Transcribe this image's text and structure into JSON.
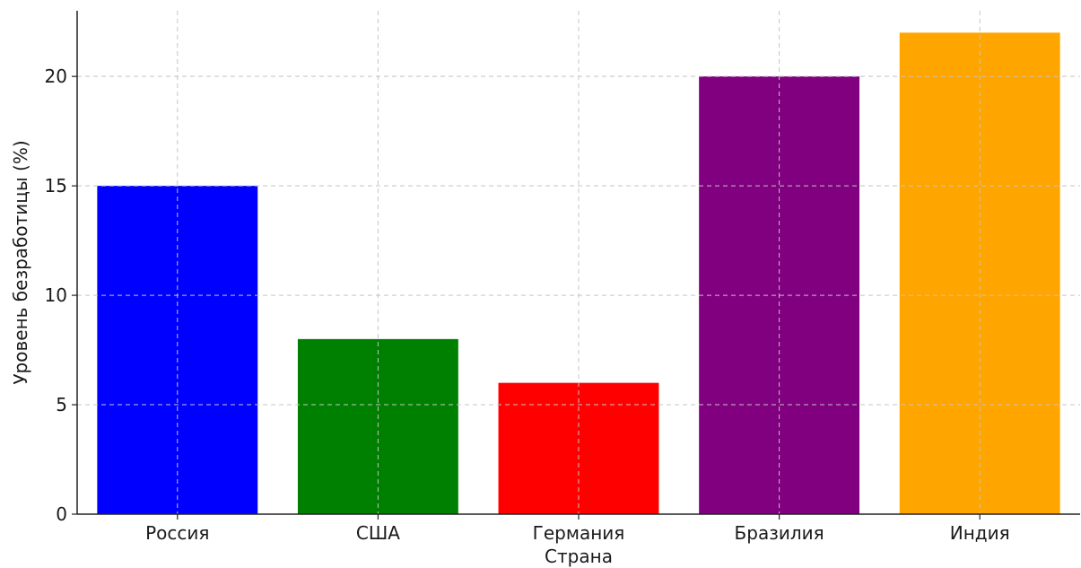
{
  "chart_data": {
    "type": "bar",
    "categories": [
      "Россия",
      "США",
      "Германия",
      "Бразилия",
      "Индия"
    ],
    "values": [
      15,
      8,
      6,
      20,
      22
    ],
    "colors": [
      "#0000ff",
      "#008000",
      "#ff0000",
      "#800080",
      "#ffa500"
    ],
    "title": "",
    "xlabel": "Страна",
    "ylabel": "Уровень безработицы (%)",
    "ylim": [
      0,
      23
    ],
    "yticks": [
      0,
      5,
      10,
      15,
      20
    ],
    "grid": true
  }
}
